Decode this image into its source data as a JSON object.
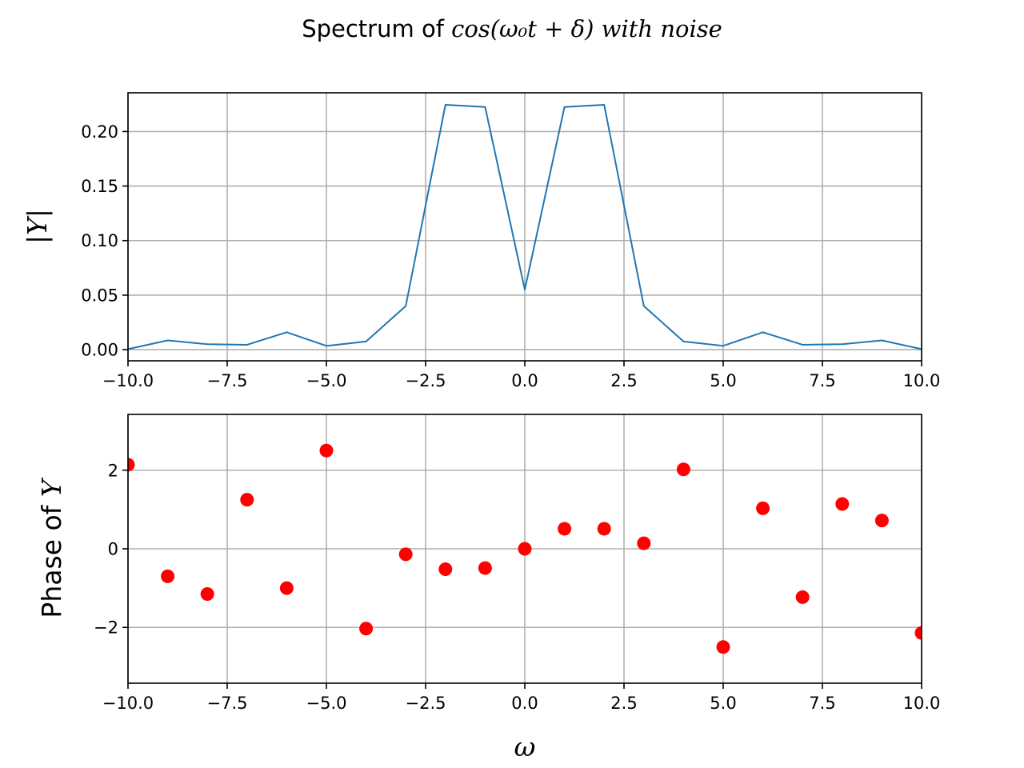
{
  "figure": {
    "title_prefix": "Spectrum of ",
    "title_math": "cos(ω₀t + δ) with noise"
  },
  "chart_data": [
    {
      "type": "line",
      "title": "",
      "xlabel": "",
      "ylabel": "|Y|",
      "xlim": [
        -10,
        10
      ],
      "ylim": [
        -0.0102,
        0.2355
      ],
      "grid": true,
      "xticks": [
        -10,
        -7.5,
        -5,
        -2.5,
        0,
        2.5,
        5,
        7.5,
        10
      ],
      "xtick_labels": [
        "−10.0",
        "−7.5",
        "−5.0",
        "−2.5",
        "0.0",
        "2.5",
        "5.0",
        "7.5",
        "10.0"
      ],
      "yticks": [
        0,
        0.05,
        0.1,
        0.15,
        0.2
      ],
      "ytick_labels": [
        "0.00",
        "0.05",
        "0.10",
        "0.15",
        "0.20"
      ],
      "colors": {
        "line": "#1f77b4"
      },
      "series": [
        {
          "x": [
            -10,
            -9,
            -8,
            -7,
            -6,
            -5,
            -4,
            -3,
            -2,
            -1,
            0,
            1,
            2,
            3,
            4,
            5,
            6,
            7,
            8,
            9,
            10
          ],
          "values": [
            0.0005,
            0.0085,
            0.005,
            0.0045,
            0.016,
            0.0035,
            0.0075,
            0.04,
            0.2245,
            0.2225,
            0.055,
            0.2225,
            0.2245,
            0.04,
            0.0075,
            0.0035,
            0.016,
            0.0045,
            0.005,
            0.0085,
            0.0005
          ]
        }
      ]
    },
    {
      "type": "scatter",
      "title": "",
      "xlabel": "ω",
      "ylabel_prefix": "Phase of ",
      "ylabel_math": "Y",
      "xlim": [
        -10,
        10
      ],
      "ylim": [
        -3.42,
        3.42
      ],
      "grid": true,
      "xticks": [
        -10,
        -7.5,
        -5,
        -2.5,
        0,
        2.5,
        5,
        7.5,
        10
      ],
      "xtick_labels": [
        "−10.0",
        "−7.5",
        "−5.0",
        "−2.5",
        "0.0",
        "2.5",
        "5.0",
        "7.5",
        "10.0"
      ],
      "yticks": [
        -2,
        0,
        2
      ],
      "ytick_labels": [
        "−2",
        "0",
        "2"
      ],
      "colors": {
        "marker": "#ff0000"
      },
      "series": [
        {
          "x": [
            -10,
            -9,
            -8,
            -7,
            -6,
            -5,
            -4,
            -3,
            -2,
            -1,
            0,
            1,
            2,
            3,
            4,
            5,
            6,
            7,
            8,
            9,
            10
          ],
          "values": [
            2.14,
            -0.7,
            -1.15,
            1.25,
            -1.0,
            2.5,
            -2.03,
            -0.14,
            -0.52,
            -0.49,
            0.0,
            0.51,
            0.51,
            0.14,
            2.02,
            -2.5,
            1.03,
            -1.23,
            1.14,
            0.72,
            -2.14
          ]
        }
      ]
    }
  ]
}
